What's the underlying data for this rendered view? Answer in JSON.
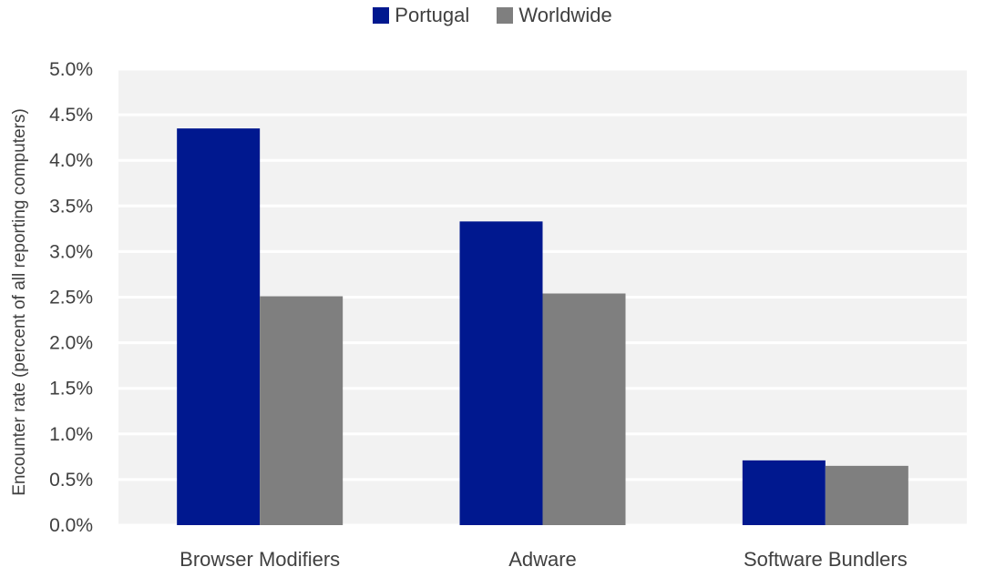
{
  "chart_data": {
    "type": "bar",
    "categories": [
      "Browser Modifiers",
      "Adware",
      "Software Bundlers"
    ],
    "series": [
      {
        "name": "Portugal",
        "values": [
          4.35,
          3.33,
          0.71
        ],
        "color": "#00188F"
      },
      {
        "name": "Worldwide",
        "values": [
          2.51,
          2.54,
          0.65
        ],
        "color": "#7F7F7F"
      }
    ],
    "ylabel": "Encounter rate (percent of all reporting computers)",
    "xlabel": "",
    "ylim": [
      0,
      5.0
    ],
    "yticks": [
      "0.0%",
      "0.5%",
      "1.0%",
      "1.5%",
      "2.0%",
      "2.5%",
      "3.0%",
      "3.5%",
      "4.0%",
      "4.5%",
      "5.0%"
    ],
    "grid": true,
    "legend_position": "top",
    "plot_background": "#F2F2F2",
    "gridline_color": "#FFFFFF"
  }
}
